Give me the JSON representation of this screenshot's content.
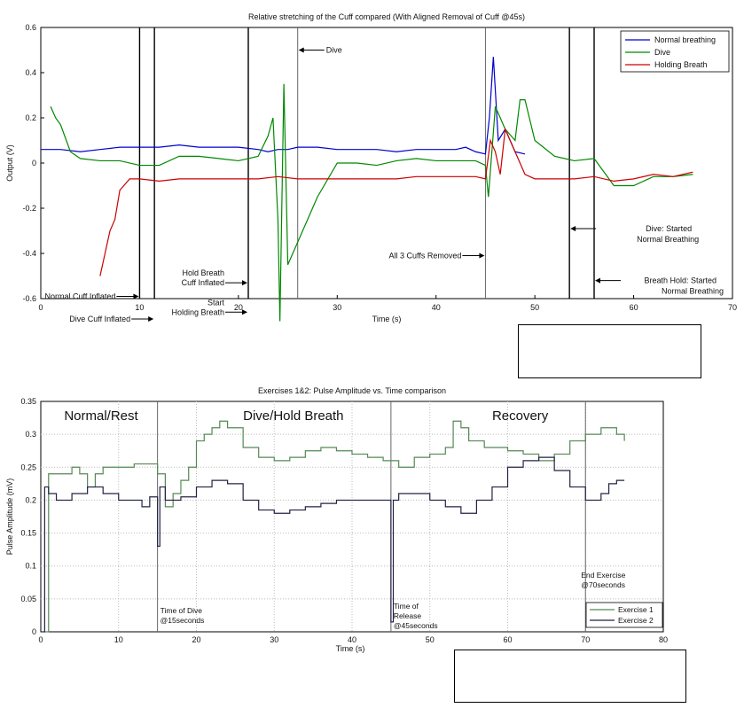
{
  "chart_data": [
    {
      "type": "line",
      "title": "Relative stretching of the Cuff compared  (With Aligned Removal of Cuff @45s)",
      "xlabel": "Time (s)",
      "ylabel": "Output (V)",
      "xlim": [
        0,
        70
      ],
      "ylim": [
        -0.6,
        0.6
      ],
      "xticks": [
        "0",
        "10",
        "20",
        "30",
        "40",
        "50",
        "60",
        "70"
      ],
      "yticks": [
        "-0.6",
        "-0.4",
        "-0.2",
        "0",
        "0.2",
        "0.4",
        "0.6"
      ],
      "grid": false,
      "legend_position": "top-right",
      "series": [
        {
          "name": "Normal breathing",
          "color": "#0000cc",
          "x": [
            0,
            2,
            4,
            6,
            8,
            10,
            12,
            14,
            16,
            18,
            20,
            22,
            23,
            24,
            25,
            26,
            28,
            30,
            32,
            34,
            36,
            38,
            40,
            42,
            43,
            44,
            45,
            45.4,
            45.8,
            46.3,
            47,
            48,
            49
          ],
          "y": [
            0.06,
            0.06,
            0.05,
            0.06,
            0.07,
            0.07,
            0.07,
            0.08,
            0.07,
            0.07,
            0.07,
            0.06,
            0.05,
            0.06,
            0.06,
            0.07,
            0.07,
            0.06,
            0.06,
            0.06,
            0.05,
            0.06,
            0.06,
            0.06,
            0.07,
            0.05,
            0.04,
            0.2,
            0.47,
            0.1,
            0.15,
            0.05,
            0.04
          ]
        },
        {
          "name": "Dive",
          "color": "#008800",
          "x": [
            1,
            1.5,
            2,
            3,
            4,
            6,
            8,
            10,
            12,
            14,
            16,
            18,
            20,
            21,
            22,
            23,
            23.5,
            24,
            24.2,
            24.6,
            25,
            26,
            28,
            30,
            32,
            34,
            36,
            38,
            40,
            42,
            44,
            45,
            45.3,
            46,
            47,
            48,
            48.5,
            49,
            50,
            52,
            54,
            56,
            58,
            60,
            62,
            64,
            66
          ],
          "y": [
            0.25,
            0.2,
            0.17,
            0.05,
            0.02,
            0.01,
            0.01,
            -0.01,
            -0.01,
            0.03,
            0.03,
            0.02,
            0.01,
            0.02,
            0.03,
            0.12,
            0.2,
            -0.25,
            -0.7,
            0.35,
            -0.45,
            -0.35,
            -0.15,
            0,
            0,
            -0.01,
            0.01,
            0.02,
            0.01,
            0.01,
            0.01,
            -0.01,
            -0.15,
            0.25,
            0.15,
            0.1,
            0.28,
            0.28,
            0.1,
            0.03,
            0.01,
            0.02,
            -0.1,
            -0.1,
            -0.06,
            -0.06,
            -0.05
          ]
        },
        {
          "name": "Holding Breath",
          "color": "#cc0000",
          "x": [
            6,
            6.5,
            7,
            7.5,
            8,
            9,
            10,
            12,
            14,
            16,
            18,
            20,
            22,
            24,
            26,
            28,
            30,
            32,
            34,
            36,
            38,
            40,
            42,
            44,
            45,
            45.5,
            46,
            46.5,
            47,
            48,
            49,
            50,
            52,
            54,
            56,
            58,
            60,
            62,
            64,
            66
          ],
          "y": [
            -0.5,
            -0.4,
            -0.3,
            -0.25,
            -0.12,
            -0.07,
            -0.07,
            -0.08,
            -0.07,
            -0.07,
            -0.07,
            -0.07,
            -0.07,
            -0.06,
            -0.07,
            -0.07,
            -0.07,
            -0.07,
            -0.07,
            -0.07,
            -0.06,
            -0.06,
            -0.06,
            -0.06,
            -0.07,
            0.1,
            0.05,
            -0.05,
            0.15,
            0.05,
            -0.05,
            -0.07,
            -0.07,
            -0.07,
            -0.06,
            -0.08,
            -0.07,
            -0.05,
            -0.06,
            -0.04
          ]
        }
      ],
      "vlines": [
        10,
        11.5,
        21,
        26,
        45,
        53.5,
        56
      ],
      "annotations": [
        {
          "text": "Dive",
          "arrow_x": 26,
          "arrow_y": 0.5,
          "side": "right"
        },
        {
          "text": "Normal Cuff Inflated",
          "arrow_x": 10,
          "arrow_y": -0.59,
          "side": "left"
        },
        {
          "text": "Dive Cuff Inflated",
          "arrow_x": 11.5,
          "arrow_y": -0.69,
          "side": "left"
        },
        {
          "text": "Hold Breath",
          "text2": "Cuff Inflated",
          "arrow_x": 21,
          "arrow_y": -0.53,
          "side": "left"
        },
        {
          "text": "Start",
          "text2": "Holding Breath",
          "arrow_x": 21,
          "arrow_y": -0.66,
          "side": "left"
        },
        {
          "text": "All 3 Cuffs Removed",
          "arrow_x": 45,
          "arrow_y": -0.41,
          "side": "left"
        },
        {
          "text": "Dive: Started",
          "text2": "Normal Breathing",
          "arrow_x": 53.5,
          "arrow_y": -0.29,
          "side": "right"
        },
        {
          "text": "Breath Hold: Started",
          "text2": "Normal Breathing",
          "arrow_x": 56,
          "arrow_y": -0.52,
          "side": "right"
        }
      ]
    },
    {
      "type": "line",
      "title": "Exercises 1&2: Pulse Amplitude vs. Time comparison",
      "xlabel": "Time (s)",
      "ylabel": "Pulse Amplitude (mV)",
      "xlim": [
        0,
        80
      ],
      "ylim": [
        0,
        0.35
      ],
      "xticks": [
        "0",
        "10",
        "20",
        "30",
        "40",
        "50",
        "60",
        "70",
        "80"
      ],
      "yticks": [
        "0",
        "0.05",
        "0.1",
        "0.15",
        "0.2",
        "0.25",
        "0.3",
        "0.35"
      ],
      "grid": true,
      "legend_position": "bottom-right",
      "series": [
        {
          "name": "Exercise 1",
          "color": "#558855",
          "x": [
            0.5,
            1,
            3,
            4,
            5,
            6,
            7,
            8,
            9,
            10,
            12,
            14,
            15,
            16,
            17,
            18,
            19,
            20,
            21,
            22,
            23,
            24,
            26,
            28,
            30,
            32,
            34,
            36,
            38,
            40,
            42,
            44,
            46,
            48,
            50,
            52,
            53,
            54,
            55,
            57,
            58,
            60,
            62,
            64,
            66,
            68,
            70,
            72,
            73,
            74,
            75
          ],
          "y": [
            0,
            0.24,
            0.24,
            0.25,
            0.24,
            0.22,
            0.24,
            0.25,
            0.25,
            0.25,
            0.255,
            0.255,
            0.24,
            0.19,
            0.21,
            0.23,
            0.25,
            0.29,
            0.3,
            0.31,
            0.32,
            0.31,
            0.28,
            0.265,
            0.26,
            0.265,
            0.275,
            0.28,
            0.275,
            0.27,
            0.265,
            0.26,
            0.25,
            0.265,
            0.27,
            0.28,
            0.32,
            0.31,
            0.29,
            0.28,
            0.28,
            0.275,
            0.27,
            0.26,
            0.27,
            0.29,
            0.3,
            0.31,
            0.31,
            0.3,
            0.29
          ]
        },
        {
          "name": "Exercise 2",
          "color": "#222244",
          "x": [
            0.3,
            0.5,
            1,
            2,
            4,
            6,
            8,
            10,
            12,
            13,
            14,
            15,
            15.3,
            16,
            18,
            20,
            22,
            24,
            26,
            28,
            30,
            32,
            34,
            36,
            38,
            40,
            42,
            44,
            45,
            45.3,
            46,
            48,
            50,
            52,
            54,
            56,
            58,
            60,
            62,
            64,
            66,
            68,
            70,
            72,
            73,
            74,
            75
          ],
          "y": [
            0,
            0.22,
            0.21,
            0.2,
            0.21,
            0.22,
            0.21,
            0.2,
            0.2,
            0.19,
            0.205,
            0.13,
            0.22,
            0.2,
            0.205,
            0.22,
            0.23,
            0.225,
            0.2,
            0.185,
            0.18,
            0.185,
            0.19,
            0.195,
            0.2,
            0.2,
            0.2,
            0.2,
            0.015,
            0.2,
            0.21,
            0.21,
            0.2,
            0.19,
            0.18,
            0.2,
            0.22,
            0.25,
            0.26,
            0.265,
            0.245,
            0.22,
            0.2,
            0.21,
            0.225,
            0.23,
            0.23
          ]
        }
      ],
      "vlines": [
        15,
        45,
        70
      ],
      "region_labels": [
        "Normal/Rest",
        "Dive/Hold Breath",
        "Recovery"
      ],
      "annotations": [
        {
          "text": "Time of Dive",
          "text2": "@15seconds",
          "x": 15
        },
        {
          "text": "Time of",
          "text2": "Release",
          "text3": "@45seconds",
          "x": 45
        },
        {
          "text": "End Exercise",
          "text2": "@70seconds",
          "x": 70
        }
      ]
    }
  ]
}
